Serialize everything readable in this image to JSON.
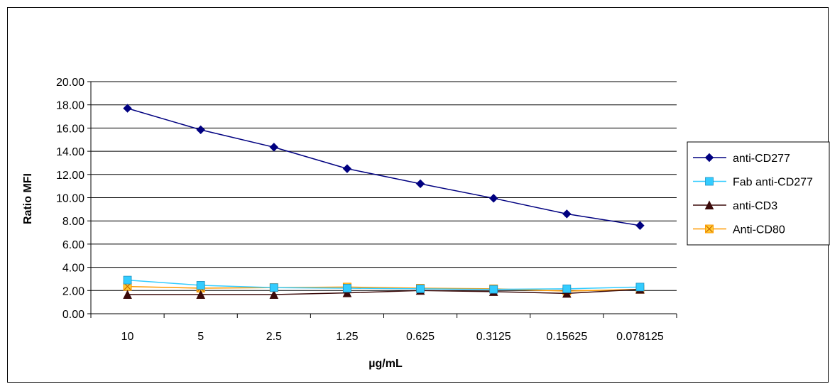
{
  "chart_data": {
    "type": "line",
    "title": "",
    "xlabel": "µg/mL",
    "ylabel": "Ratio MFI",
    "categories": [
      "10",
      "5",
      "2.5",
      "1.25",
      "0.625",
      "0.3125",
      "0.15625",
      "0.078125"
    ],
    "ylim": [
      0,
      20
    ],
    "y_ticks": [
      "0.00",
      "2.00",
      "4.00",
      "6.00",
      "8.00",
      "10.00",
      "12.00",
      "14.00",
      "16.00",
      "18.00",
      "20.00"
    ],
    "grid": true,
    "legend_position": "right",
    "series": [
      {
        "name": "anti-CD277",
        "color": "#000080",
        "marker": "diamond",
        "values": [
          17.7,
          15.85,
          14.35,
          12.5,
          11.2,
          9.95,
          8.6,
          7.6
        ]
      },
      {
        "name": "Fab anti-CD277",
        "color": "#33CCFF",
        "marker": "square",
        "values": [
          2.9,
          2.45,
          2.25,
          2.2,
          2.15,
          2.1,
          2.15,
          2.3
        ]
      },
      {
        "name": "anti-CD3",
        "color": "#3B0A0A",
        "marker": "triangle",
        "values": [
          1.65,
          1.65,
          1.65,
          1.8,
          2.0,
          1.9,
          1.75,
          2.1
        ]
      },
      {
        "name": "Anti-CD80",
        "color": "#FF9900",
        "marker": "x-square",
        "values": [
          2.35,
          2.2,
          2.25,
          2.3,
          2.2,
          2.15,
          1.95,
          2.1
        ]
      }
    ]
  }
}
